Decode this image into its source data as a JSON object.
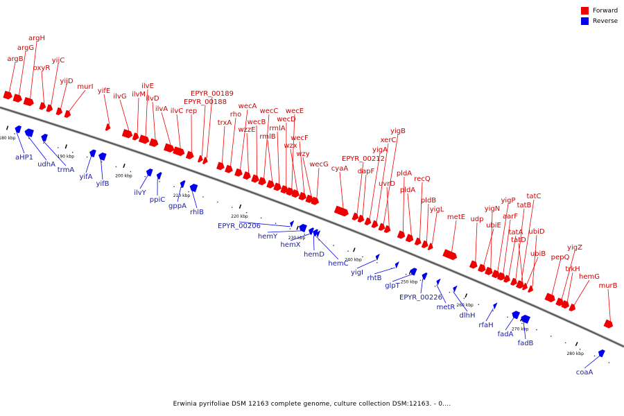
{
  "legend": {
    "forward": {
      "label": "Forward",
      "color": "#ee0000"
    },
    "reverse": {
      "label": "Reverse",
      "color": "#0000ee"
    }
  },
  "caption": "Erwinia pyrifoliae DSM 12163 complete genome, culture collection DSM:12163. - 0....",
  "axis": {
    "ticks_kbp": [
      "180 kbp",
      "190 kbp",
      "200 kbp",
      "210 kbp",
      "220 kbp",
      "230 kbp",
      "240 kbp",
      "250 kbp",
      "260 kbp",
      "270 kbp",
      "280 kbp"
    ]
  },
  "forward_genes": [
    "argB",
    "argG",
    "argH",
    "oxyR",
    "yijC",
    "yijD",
    "murI",
    "yifE",
    "ilvG",
    "ilvM",
    "ilvE",
    "ilvD",
    "ilvA",
    "ilvC",
    "rep",
    "EPYR_00188",
    "EPYR_00189",
    "trxA",
    "rho",
    "wecA",
    "wzzE",
    "wecB",
    "wecC",
    "rmlB",
    "rmlA",
    "wecD",
    "wecE",
    "wzx",
    "wecF",
    "wzy",
    "wecG",
    "cyaA",
    "EPYR_00212",
    "dapF",
    "yigA",
    "xerC",
    "yigB",
    "uvrD",
    "pldA",
    "pldA",
    "recQ",
    "pldB",
    "yigL",
    "metE",
    "udp",
    "ubiE",
    "yigN",
    "yigP",
    "aarF",
    "tatA",
    "tatB",
    "tatC",
    "tatD",
    "ubiB",
    "ubiD",
    "pepQ",
    "yigZ",
    "trkH",
    "hemG",
    "murB"
  ],
  "reverse_genes": [
    "aHP1",
    "udhA",
    "trmA",
    "yifA",
    "yifB",
    "ilvY",
    "ppiC",
    "gppA",
    "rhlB",
    "EPYR_00206",
    "hemY",
    "hemX",
    "hemD",
    "hemC",
    "yigI",
    "rhtB",
    "glpT",
    "EPYR_00226",
    "metR",
    "dlhH",
    "rfaH",
    "fadA",
    "fadB",
    "coaA"
  ]
}
